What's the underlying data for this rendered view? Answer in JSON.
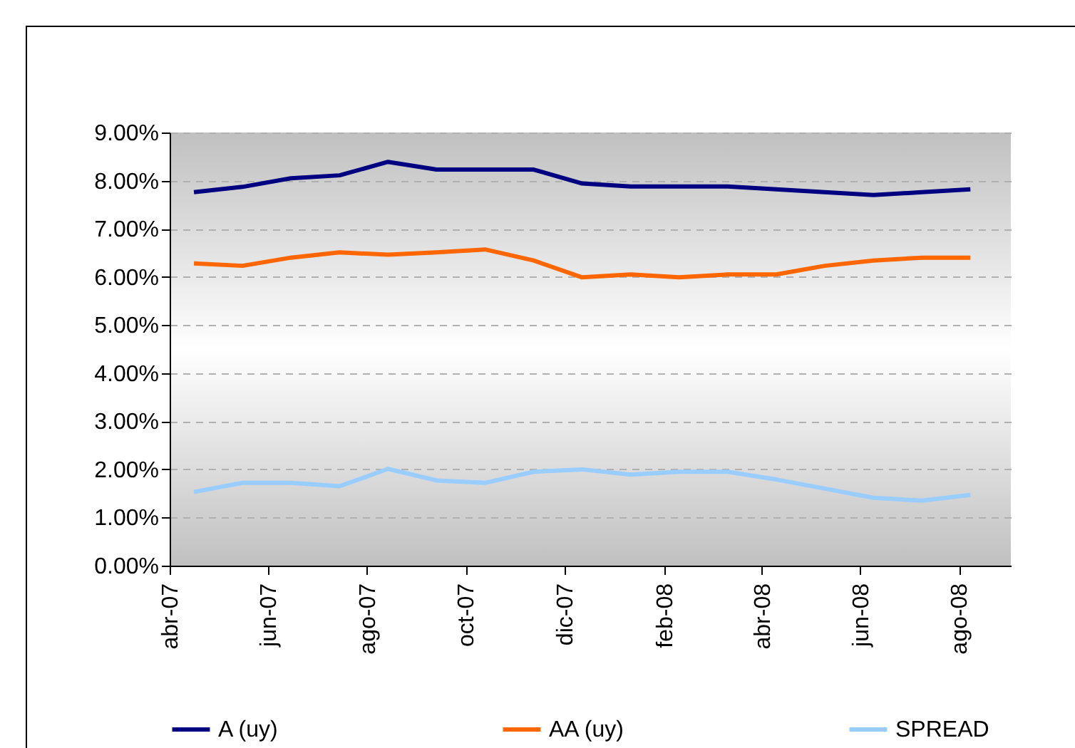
{
  "chart_data": {
    "type": "line",
    "x": [
      "2007-04-16",
      "2007-05-16",
      "2007-06-15",
      "2007-07-15",
      "2007-08-14",
      "2007-09-13",
      "2007-10-13",
      "2007-11-12",
      "2007-12-12",
      "2008-01-11",
      "2008-02-10",
      "2008-03-11",
      "2008-04-10",
      "2008-05-10",
      "2008-06-09",
      "2008-07-09",
      "2008-08-08"
    ],
    "series": [
      {
        "name": "A (uy)",
        "color": "#000080",
        "values": [
          7.76,
          7.87,
          8.05,
          8.11,
          8.39,
          8.23,
          8.23,
          8.23,
          7.94,
          7.88,
          7.88,
          7.88,
          7.82,
          7.76,
          7.7,
          7.76,
          7.82
        ]
      },
      {
        "name": "AA (uy)",
        "color": "#ff6600",
        "values": [
          6.28,
          6.23,
          6.4,
          6.51,
          6.46,
          6.51,
          6.57,
          6.34,
          5.99,
          6.05,
          5.99,
          6.05,
          6.05,
          6.23,
          6.34,
          6.4,
          6.4
        ]
      },
      {
        "name": "SPREAD",
        "color": "#99ccff",
        "values": [
          1.53,
          1.72,
          1.72,
          1.65,
          2.01,
          1.77,
          1.72,
          1.95,
          2.0,
          1.89,
          1.95,
          1.95,
          1.79,
          1.6,
          1.41,
          1.35,
          1.47
        ]
      }
    ],
    "xlim": [
      "2007-04-01",
      "2008-09-02"
    ],
    "xticks": [
      {
        "value": "2007-04-01",
        "label": "abr-07"
      },
      {
        "value": "2007-06-01",
        "label": "jun-07"
      },
      {
        "value": "2007-08-01",
        "label": "ago-07"
      },
      {
        "value": "2007-10-01",
        "label": "oct-07"
      },
      {
        "value": "2007-12-01",
        "label": "dic-07"
      },
      {
        "value": "2008-02-01",
        "label": "feb-08"
      },
      {
        "value": "2008-04-01",
        "label": "abr-08"
      },
      {
        "value": "2008-06-01",
        "label": "jun-08"
      },
      {
        "value": "2008-08-01",
        "label": "ago-08"
      }
    ],
    "ylim": [
      0,
      9
    ],
    "yticks": [
      {
        "value": 0,
        "label": "0.00%"
      },
      {
        "value": 1,
        "label": "1.00%"
      },
      {
        "value": 2,
        "label": "2.00%"
      },
      {
        "value": 3,
        "label": "3.00%"
      },
      {
        "value": 4,
        "label": "4.00%"
      },
      {
        "value": 5,
        "label": "5.00%"
      },
      {
        "value": 6,
        "label": "6.00%"
      },
      {
        "value": 7,
        "label": "7.00%"
      },
      {
        "value": 8,
        "label": "8.00%"
      },
      {
        "value": 9,
        "label": "9.00%"
      }
    ],
    "grid": "y",
    "legend": "bottom",
    "marker": "none",
    "line_style": "solid"
  }
}
